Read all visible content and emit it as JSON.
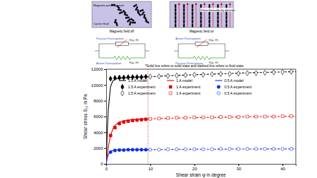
{
  "diagram": {
    "field_off": {
      "particle_label": "Magneto-active particle",
      "fluid_label": "Carrier fluid",
      "caption": "Magnetic field off"
    },
    "field_on": {
      "chain_label": "Chain formation by particles",
      "caption": "Magnetic field on"
    },
    "model_off": {
      "upper_label": "Passive Participation",
      "upper_symbol": "S(ψ, H)",
      "lower_label": "Active Participation",
      "lower_symbol": "S(ψ, H)"
    },
    "model_on": {
      "upper_label": "Active Participation",
      "upper_symbol": "S(ψ, H)",
      "lower_label": "Passive Participation",
      "lower_symbol": "S(ψ, H)"
    }
  },
  "chart_data": {
    "type": "scatter",
    "annotation": "*Solid line refers to solid state and dashed line refers to fluid state",
    "x_label": "Shear strain ψ in degree",
    "y_label": "Shear stress S₁₂ in Pa",
    "xlim": [
      0,
      43
    ],
    "xticks": [
      0,
      10,
      20,
      30,
      40
    ],
    "ylim": [
      0,
      12000
    ],
    "yticks": [
      0,
      2000,
      4000,
      6000,
      8000,
      10000,
      12000
    ],
    "grid": false,
    "legend": "upper left",
    "reference_line": {
      "x": 9.5,
      "color": "#e00000",
      "line_style": "dotted"
    },
    "series": [
      {
        "name": "1.5 A model",
        "type": "line",
        "color": "#000000",
        "line_style": "solid",
        "x": [
          0,
          0.25,
          0.5,
          1,
          1.5,
          2,
          3,
          5,
          7,
          10
        ],
        "values": [
          0,
          4000,
          7000,
          9800,
          10500,
          10750,
          10850,
          10950,
          11000,
          11050
        ]
      },
      {
        "name": "1.5 A experiment",
        "type": "scatter",
        "color": "#000000",
        "marker": "diamond",
        "x": [
          1,
          2,
          3,
          4,
          5,
          6,
          7,
          8,
          9
        ],
        "values": [
          10800,
          10900,
          10950,
          10950,
          11000,
          11000,
          11000,
          11000,
          11050
        ]
      },
      {
        "name": "1.5 A experiment",
        "type": "scatter",
        "color": "#000000",
        "marker": "diamond-open",
        "x": [
          10,
          12,
          14,
          16,
          18,
          20,
          22,
          24,
          26,
          28,
          30,
          32,
          34,
          36,
          38,
          40,
          42
        ],
        "values": [
          11050,
          11100,
          11150,
          11200,
          11250,
          11300,
          11300,
          11350,
          11400,
          11400,
          11450,
          11500,
          11500,
          11550,
          11600,
          11650,
          11700
        ]
      },
      {
        "name": "1 A model",
        "type": "line",
        "color": "#e00000",
        "line_style": "solid",
        "x": [
          0,
          0.25,
          0.5,
          1,
          1.5,
          2,
          3,
          4,
          5,
          7,
          10
        ],
        "values": [
          0,
          1200,
          2200,
          3600,
          4400,
          4900,
          5300,
          5450,
          5550,
          5650,
          5700
        ]
      },
      {
        "name": "1 A experiment",
        "type": "scatter",
        "color": "#e00000",
        "marker": "square",
        "x": [
          1,
          2,
          3,
          4,
          5,
          6,
          7,
          8,
          9
        ],
        "values": [
          3600,
          4600,
          5100,
          5300,
          5400,
          5500,
          5550,
          5600,
          5650
        ]
      },
      {
        "name": "1 A experiment",
        "type": "scatter",
        "color": "#e00000",
        "marker": "square-open",
        "x": [
          10,
          12,
          14,
          16,
          18,
          20,
          22,
          24,
          26,
          28,
          30,
          32,
          34,
          36,
          38,
          40,
          42
        ],
        "values": [
          5700,
          5750,
          5800,
          5850,
          5850,
          5900,
          5900,
          5900,
          5950,
          5950,
          5950,
          6000,
          6000,
          6000,
          6000,
          6050,
          6050
        ]
      },
      {
        "name": "0.5 A model",
        "type": "line",
        "color": "#1030e0",
        "line_style": "solid",
        "x": [
          0,
          0.25,
          0.5,
          1,
          1.5,
          2,
          3,
          5,
          10
        ],
        "values": [
          0,
          700,
          1200,
          1600,
          1700,
          1750,
          1780,
          1800,
          1800
        ]
      },
      {
        "name": "0.5 A experiment",
        "type": "scatter",
        "color": "#1030e0",
        "marker": "circle",
        "x": [
          1,
          2,
          3,
          4,
          5,
          6,
          7,
          8,
          9
        ],
        "values": [
          1500,
          1700,
          1750,
          1750,
          1800,
          1800,
          1800,
          1800,
          1800
        ]
      },
      {
        "name": "0.5 A experiment",
        "type": "scatter",
        "color": "#1030e0",
        "marker": "circle-open",
        "x": [
          10,
          12,
          14,
          16,
          18,
          20,
          22,
          24,
          26,
          28,
          30,
          32,
          34,
          36,
          38,
          40,
          42
        ],
        "values": [
          1800,
          1800,
          1850,
          1850,
          1850,
          1850,
          1850,
          1850,
          1900,
          1900,
          1900,
          1900,
          1900,
          1900,
          1900,
          1900,
          1900
        ]
      },
      {
        "type": "line",
        "color": "#000000",
        "line_style": "dashed",
        "x": [
          10,
          15,
          20,
          25,
          30,
          35,
          40,
          43
        ],
        "values": [
          11050,
          11200,
          11300,
          11400,
          11500,
          11600,
          11650,
          11700
        ]
      },
      {
        "type": "line",
        "color": "#e00000",
        "line_style": "dashed",
        "x": [
          10,
          15,
          20,
          25,
          30,
          35,
          40,
          43
        ],
        "values": [
          5700,
          5800,
          5850,
          5900,
          5950,
          6000,
          6000,
          6050
        ]
      },
      {
        "type": "line",
        "color": "#1030e0",
        "line_style": "dashed",
        "x": [
          10,
          20,
          30,
          43
        ],
        "values": [
          1800,
          1850,
          1880,
          1900
        ]
      }
    ]
  }
}
